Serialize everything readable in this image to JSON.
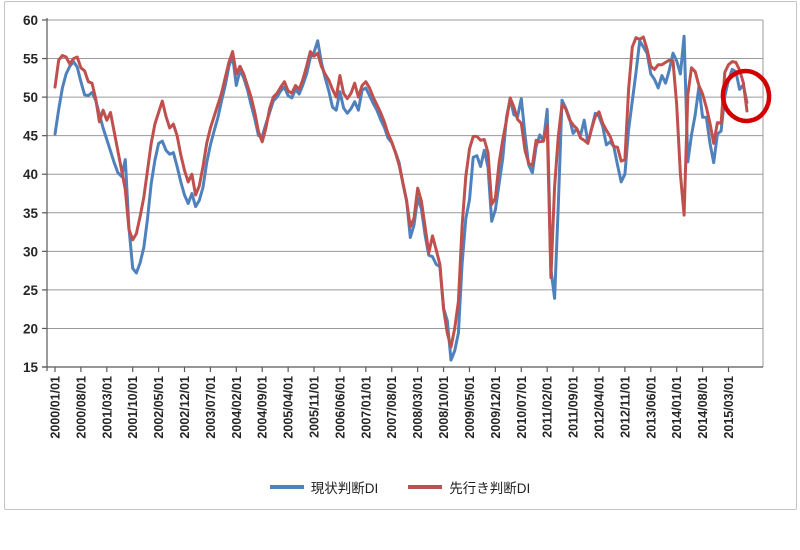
{
  "chart": {
    "y_axis": {
      "min": 15,
      "max": 60,
      "step": 5
    },
    "x_axis": {
      "tick_interval_months": 7,
      "tick_labels": [
        "2000/01/01",
        "2000/08/01",
        "2001/03/01",
        "2001/10/01",
        "2002/05/01",
        "2002/12/01",
        "2003/07/01",
        "2004/02/01",
        "2004/09/01",
        "2005/04/01",
        "2005/11/01",
        "2006/06/01",
        "2007/01/01",
        "2007/08/01",
        "2008/03/01",
        "2008/10/01",
        "2009/05/01",
        "2009/12/01",
        "2010/07/01",
        "2011/02/01",
        "2011/09/01",
        "2012/04/01",
        "2012/11/01",
        "2013/06/01",
        "2014/01/01",
        "2014/08/01",
        "2015/03/01"
      ]
    },
    "annotation": {
      "shape": "ellipse",
      "color": "#d40000",
      "highlights": "final drop of both DI lines to below 50 at the right end of the chart"
    },
    "colors": {
      "gridline": "#9a9a9a",
      "axis": "#595959",
      "label_text": "#262626",
      "series_current": "#4F81BD",
      "series_future": "#C0504D"
    }
  },
  "chart_data": {
    "type": "line",
    "frequency": "monthly",
    "x_start": "2000/01",
    "x_end": "2015/08",
    "ylim": [
      15,
      60
    ],
    "grid": true,
    "legend_position": "bottom",
    "categories_ticks": [
      "2000/01/01",
      "2000/08/01",
      "2001/03/01",
      "2001/10/01",
      "2002/05/01",
      "2002/12/01",
      "2003/07/01",
      "2004/02/01",
      "2004/09/01",
      "2005/04/01",
      "2005/11/01",
      "2006/06/01",
      "2007/01/01",
      "2007/08/01",
      "2008/03/01",
      "2008/10/01",
      "2009/05/01",
      "2009/12/01",
      "2010/07/01",
      "2011/02/01",
      "2011/09/01",
      "2012/04/01",
      "2012/11/01",
      "2013/06/01",
      "2014/01/01",
      "2014/08/01",
      "2015/03/01"
    ],
    "series": [
      {
        "name": "現状判断DI",
        "color": "#4F81BD",
        "values": [
          45.2,
          48.4,
          51.2,
          53.0,
          54.0,
          54.6,
          53.9,
          52.0,
          50.3,
          50.2,
          50.6,
          49.6,
          47.8,
          46.0,
          44.5,
          43.0,
          41.5,
          40.2,
          39.7,
          41.9,
          33.0,
          27.8,
          27.2,
          28.5,
          30.5,
          34.2,
          38.8,
          41.8,
          44.0,
          44.3,
          43.1,
          42.6,
          42.8,
          41.0,
          39.0,
          37.3,
          36.2,
          37.5,
          35.8,
          36.6,
          38.3,
          41.5,
          43.8,
          45.6,
          47.3,
          49.5,
          51.5,
          54.0,
          55.3,
          51.5,
          53.5,
          52.5,
          51.0,
          49.0,
          47.2,
          45.0,
          44.9,
          46.5,
          48.0,
          49.5,
          50.0,
          50.8,
          51.3,
          50.2,
          49.9,
          51.0,
          50.4,
          51.6,
          53.0,
          55.1,
          55.8,
          57.3,
          54.5,
          52.5,
          50.8,
          48.7,
          48.3,
          50.7,
          48.6,
          47.9,
          48.5,
          49.4,
          48.3,
          50.9,
          51.2,
          50.2,
          49.2,
          48.3,
          47.1,
          46.1,
          44.7,
          44.1,
          42.9,
          41.5,
          38.8,
          36.6,
          31.8,
          33.4,
          36.9,
          35.5,
          32.1,
          29.5,
          29.3,
          28.3,
          28.0,
          22.6,
          21.0,
          15.9,
          17.1,
          19.4,
          28.4,
          34.2,
          36.7,
          42.2,
          42.4,
          41.0,
          43.1,
          40.9,
          33.9,
          35.4,
          38.8,
          42.1,
          47.4,
          49.8,
          47.7,
          47.5,
          49.8,
          45.1,
          41.2,
          40.2,
          43.6,
          45.1,
          44.3,
          48.4,
          27.7,
          23.9,
          36.0,
          49.6,
          48.6,
          47.3,
          45.3,
          45.9,
          45.0,
          47.0,
          44.1,
          45.9,
          47.9,
          47.5,
          46.2,
          43.8,
          44.2,
          43.6,
          41.2,
          39.0,
          40.0,
          45.8,
          49.5,
          53.2,
          57.3,
          56.5,
          55.7,
          53.0,
          52.3,
          51.2,
          52.8,
          51.8,
          53.5,
          55.7,
          54.7,
          53.0,
          57.9,
          41.6,
          45.1,
          47.7,
          51.3,
          47.4,
          47.4,
          44.0,
          41.5,
          45.2,
          45.6,
          50.1,
          52.2,
          53.6,
          53.3,
          51.0,
          51.6,
          49.3
        ]
      },
      {
        "name": "先行き判断DI",
        "color": "#C0504D",
        "values": [
          51.3,
          54.8,
          55.4,
          55.2,
          54.3,
          55.0,
          55.2,
          53.8,
          53.4,
          52.0,
          51.8,
          49.8,
          46.8,
          48.3,
          47.0,
          48.0,
          45.5,
          43.0,
          40.5,
          38.0,
          32.8,
          31.5,
          32.3,
          34.5,
          37.0,
          40.5,
          44.0,
          46.5,
          48.0,
          49.5,
          47.5,
          46.0,
          46.5,
          45.0,
          42.5,
          40.5,
          39.0,
          40.0,
          37.3,
          38.5,
          41.0,
          44.0,
          46.0,
          47.5,
          49.0,
          50.5,
          52.5,
          54.5,
          55.9,
          53.0,
          54.0,
          53.0,
          51.5,
          50.0,
          48.0,
          45.5,
          44.2,
          46.0,
          48.5,
          50.0,
          50.5,
          51.3,
          52.0,
          50.8,
          50.5,
          51.5,
          51.0,
          52.3,
          54.0,
          55.9,
          55.3,
          55.7,
          54.0,
          53.0,
          52.2,
          51.0,
          50.0,
          52.8,
          50.5,
          49.8,
          50.5,
          51.8,
          50.0,
          51.5,
          52.0,
          51.2,
          50.0,
          49.0,
          48.0,
          46.8,
          45.3,
          44.2,
          42.8,
          41.2,
          38.9,
          36.5,
          33.2,
          34.3,
          38.2,
          36.5,
          33.2,
          29.8,
          32.0,
          30.2,
          28.3,
          22.5,
          19.4,
          17.6,
          20.0,
          23.5,
          33.3,
          39.7,
          43.3,
          44.9,
          44.9,
          44.4,
          44.5,
          42.8,
          36.1,
          36.9,
          41.5,
          44.5,
          47.0,
          49.9,
          48.7,
          47.1,
          46.6,
          43.1,
          41.4,
          41.1,
          44.4,
          44.2,
          44.3,
          46.4,
          26.6,
          38.4,
          44.9,
          49.0,
          48.5,
          47.1,
          46.4,
          45.9,
          44.7,
          44.4,
          44.0,
          45.9,
          47.5,
          48.1,
          46.6,
          45.7,
          44.9,
          43.6,
          43.5,
          41.7,
          41.9,
          51.0,
          56.5,
          57.7,
          57.5,
          57.8,
          56.2,
          54.0,
          53.6,
          54.2,
          54.2,
          54.5,
          54.8,
          54.7,
          49.0,
          40.0,
          34.7,
          50.3,
          53.8,
          53.3,
          51.5,
          50.4,
          48.7,
          46.6,
          44.0,
          46.7,
          46.6,
          53.2,
          54.2,
          54.6,
          54.5,
          53.5,
          51.9,
          48.2
        ]
      }
    ]
  }
}
